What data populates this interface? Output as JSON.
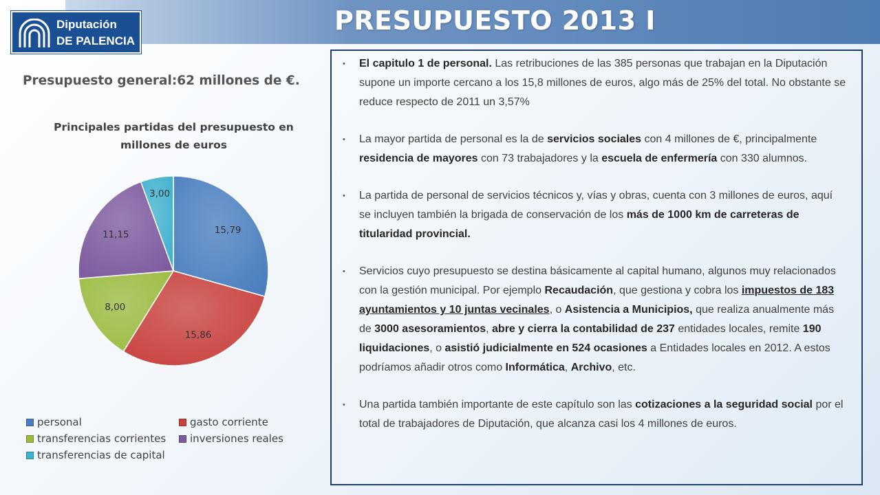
{
  "header": {
    "title": "PRESUPUESTO 2013 I"
  },
  "logo": {
    "line1": "Diputación",
    "line2": "DE PALENCIA"
  },
  "subtitle": "Presupuesto general:62 millones de €.",
  "chart_data": {
    "type": "pie",
    "title": "Principales partidas del presupuesto en millones de euros",
    "categories": [
      "personal",
      "gasto corriente",
      "transferencias corrientes",
      "inversiones reales",
      "transferencias de capital"
    ],
    "values": [
      15.79,
      15.86,
      8.0,
      11.15,
      3.0
    ],
    "labels": [
      "15,79",
      "15,86",
      "8,00",
      "11,15",
      "3,00"
    ],
    "colors": [
      "#4a7ebf",
      "#c9413d",
      "#9bbb3f",
      "#7d5a9e",
      "#3eb1cc"
    ],
    "legend_position": "bottom"
  },
  "bullets": [
    [
      {
        "t": "El capitulo 1 de personal.",
        "b": true
      },
      {
        "t": " Las retribuciones de las 385 personas que trabajan en la Diputación supone un importe cercano a los 15,8 millones de euros, algo más de 25% del total.  No obstante se reduce respecto de 2011 un 3,57%"
      }
    ],
    [
      {
        "t": "La mayor partida de personal  es la de "
      },
      {
        "t": "servicios sociales",
        "b": true
      },
      {
        "t": " con 4 millones de €, principalmente "
      },
      {
        "t": "residencia de mayores",
        "b": true
      },
      {
        "t": " con 73 trabajadores y la  "
      },
      {
        "t": "escuela de enfermería",
        "b": true
      },
      {
        "t": " con 330 alumnos."
      }
    ],
    [
      {
        "t": "La partida de personal de servicios técnicos y, vías y obras, cuenta con 3 millones de euros, aquí se incluyen también la brigada de conservación de los "
      },
      {
        "t": "más de 1000 km de carreteras de titularidad provincial.",
        "b": true
      }
    ],
    [
      {
        "t": "Servicios cuyo presupuesto se destina básicamente al capital humano, algunos muy relacionados con la gestión municipal. Por ejemplo "
      },
      {
        "t": "Recaudación",
        "b": true
      },
      {
        "t": ", que gestiona y cobra los "
      },
      {
        "t": "impuestos de 183 ayuntamientos y 10 juntas vecinales",
        "b": true,
        "u": true
      },
      {
        "t": ", o "
      },
      {
        "t": "Asistencia a Municipios,",
        "b": true
      },
      {
        "t": " que realiza anualmente más de "
      },
      {
        "t": "3000 asesoramientos",
        "b": true
      },
      {
        "t": ", "
      },
      {
        "t": "abre y cierra la contabilidad de 237",
        "b": true
      },
      {
        "t": " entidades locales, remite "
      },
      {
        "t": "190 liquidaciones",
        "b": true
      },
      {
        "t": ", o "
      },
      {
        "t": "asistió judicialmente en 524 ocasiones",
        "b": true
      },
      {
        "t": " a Entidades locales en 2012. A estos podríamos añadir otros como "
      },
      {
        "t": "Informática",
        "b": true
      },
      {
        "t": ", "
      },
      {
        "t": "Archivo",
        "b": true
      },
      {
        "t": ", etc."
      }
    ],
    [
      {
        "t": "Una partida también importante de este capítulo son las "
      },
      {
        "t": "cotizaciones a la seguridad social",
        "b": true
      },
      {
        "t": " por el total de trabajadores de Diputación, que alcanza casi los 4 millones de euros."
      }
    ]
  ]
}
